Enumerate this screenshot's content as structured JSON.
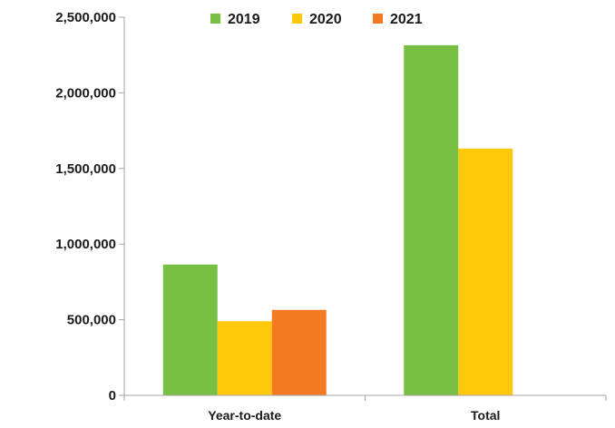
{
  "chart_data": {
    "type": "bar",
    "title": "",
    "xlabel": "",
    "ylabel": "",
    "categories": [
      "Year-to-date",
      "Total"
    ],
    "series": [
      {
        "name": "2019",
        "color": "#77C043",
        "values": [
          865000,
          2315000
        ]
      },
      {
        "name": "2020",
        "color": "#FFC80A",
        "values": [
          490000,
          1632000
        ]
      },
      {
        "name": "2021",
        "color": "#F37A22",
        "values": [
          565000,
          null
        ]
      }
    ],
    "ylim": [
      0,
      2500000
    ],
    "yticks": [
      0,
      500000,
      1000000,
      1500000,
      2000000,
      2500000
    ],
    "ytick_labels": [
      "0",
      "500,000",
      "1,000,000",
      "1,500,000",
      "2,000,000",
      "2,500,000"
    ],
    "grid": false,
    "legend_position": "top"
  }
}
